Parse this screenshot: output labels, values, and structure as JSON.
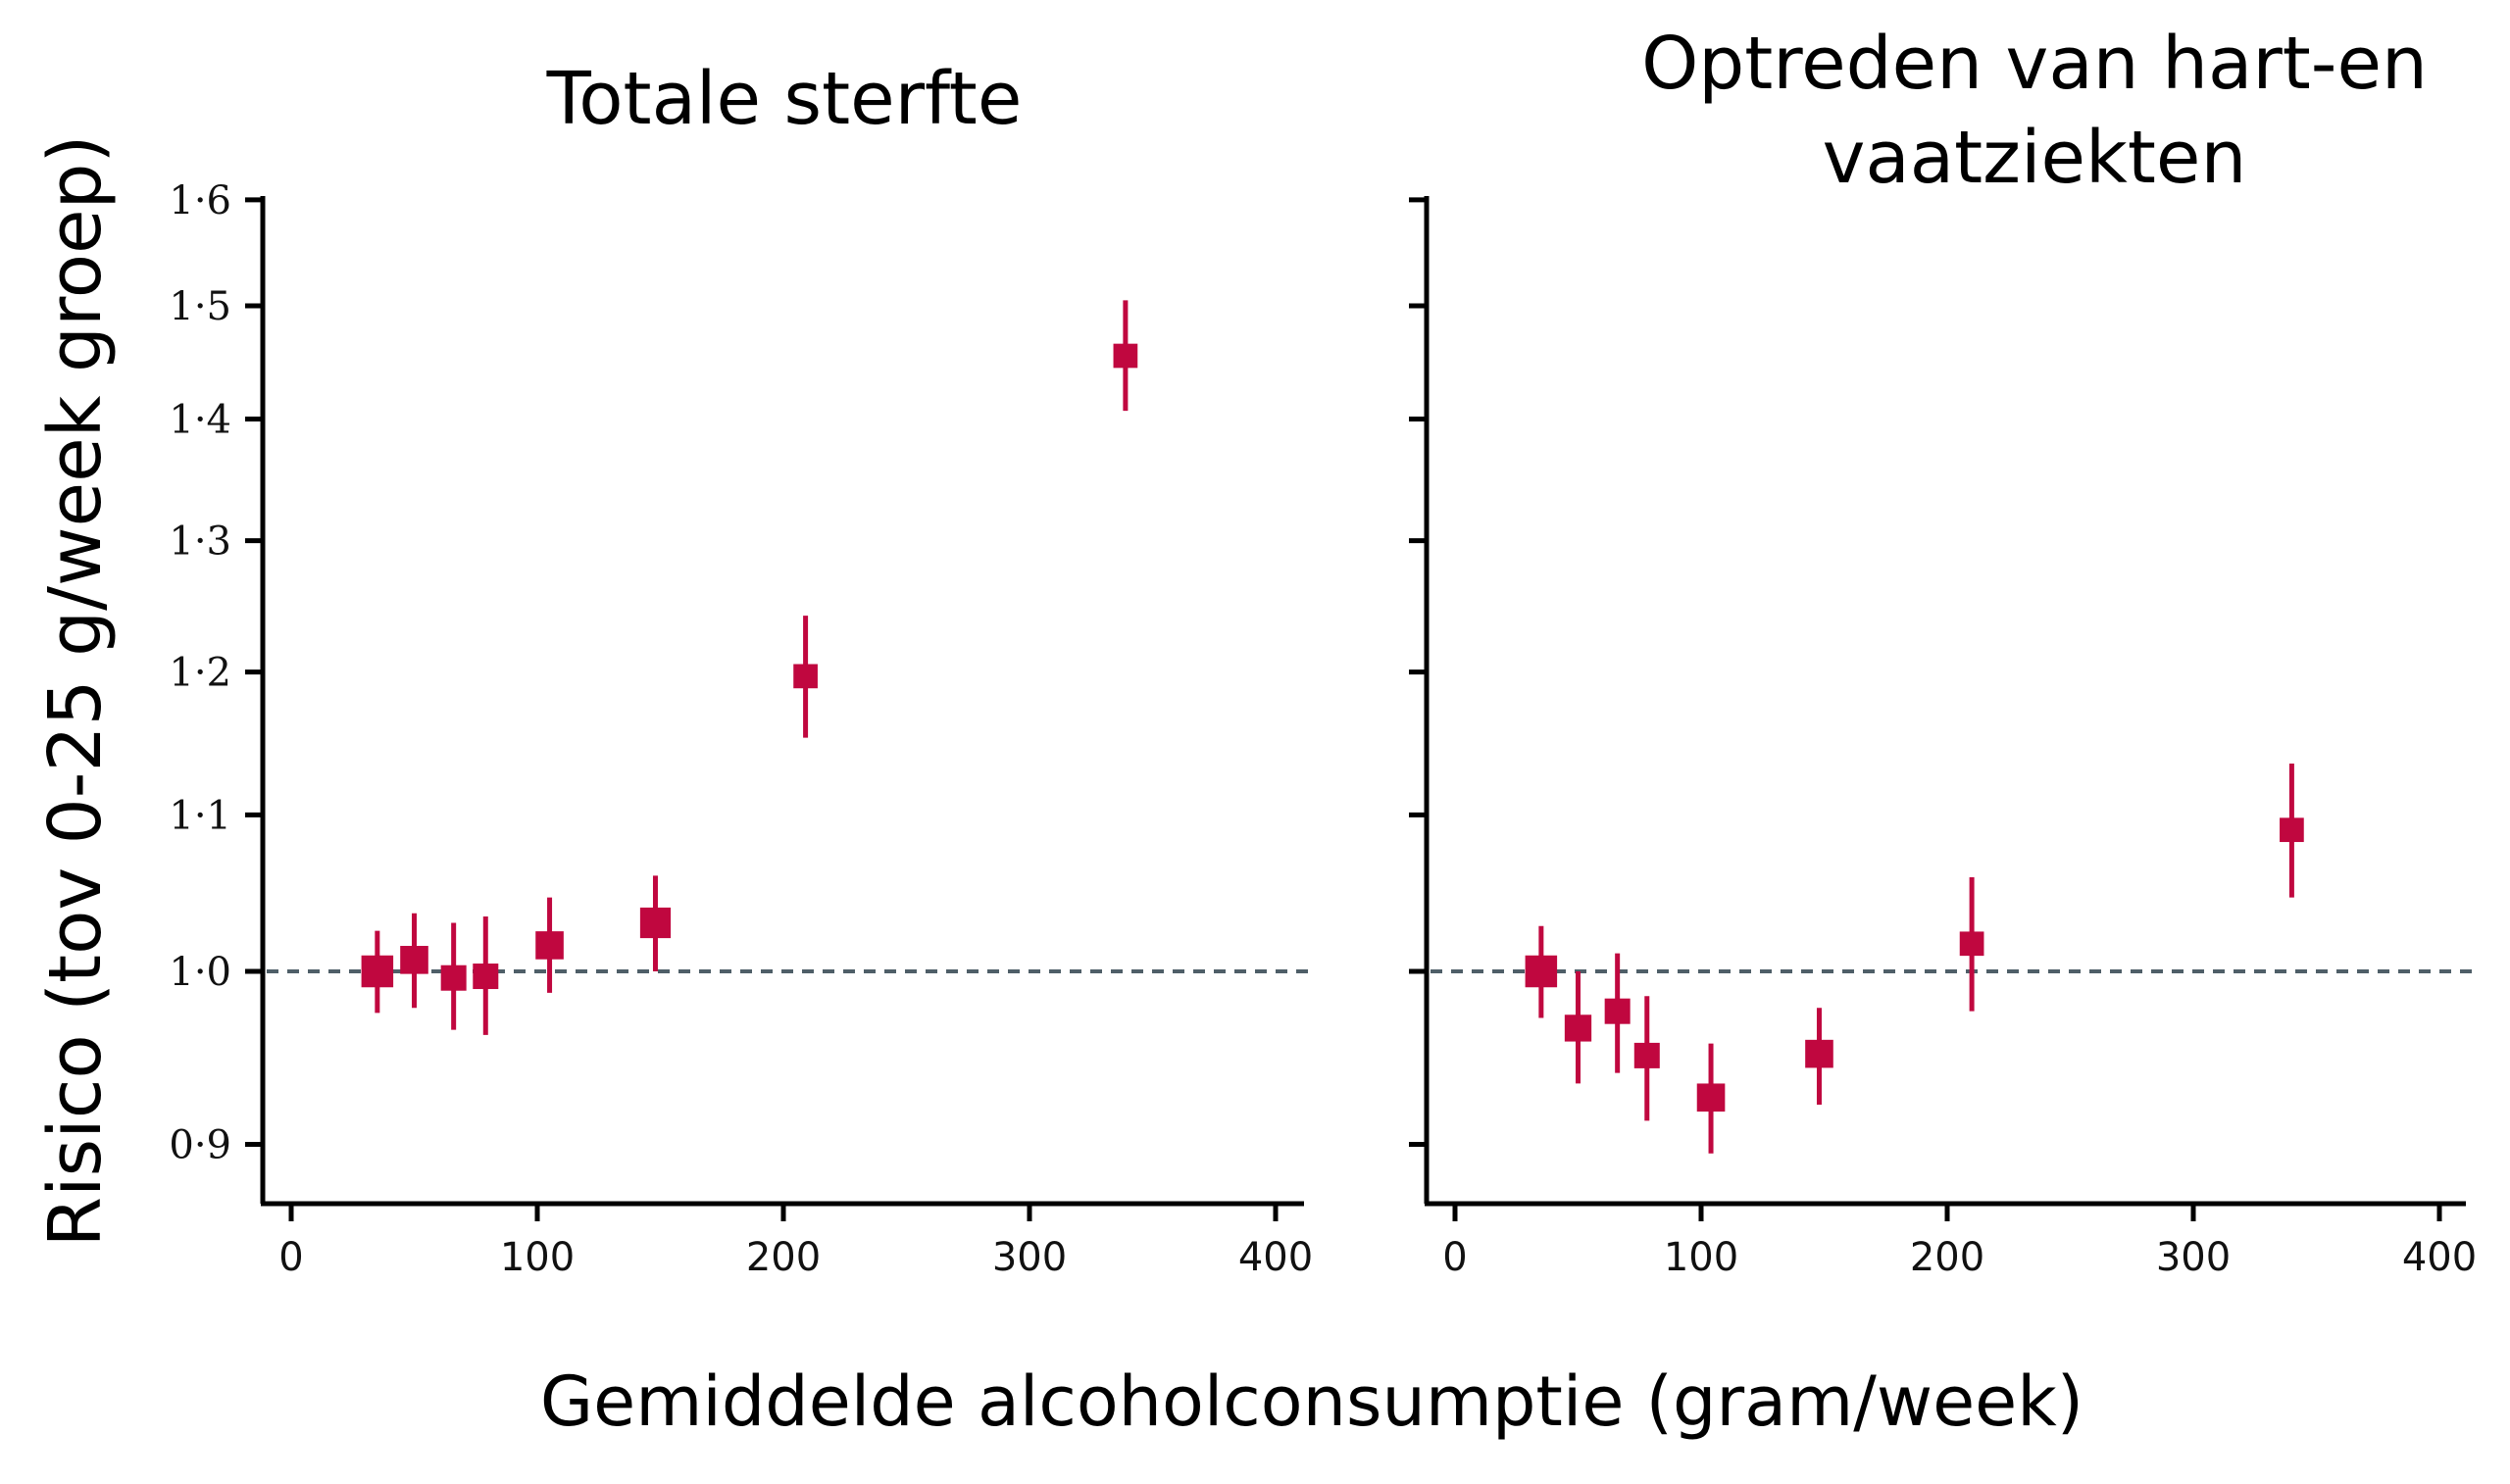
{
  "figure": {
    "y_axis_label": "Risico (tov 0-25 g/week groep)",
    "x_axis_label": "Gemiddelde alcoholconsumptie (gram/week)",
    "marker_color": "#c0073f",
    "reference_line_color": "#4f5f68"
  },
  "chart_data": [
    {
      "type": "scatter",
      "title": "Totale sterfte",
      "xlabel": "Gemiddelde alcoholconsumptie (gram/week)",
      "ylabel": "Risico (tov 0-25 g/week groep)",
      "xlim": [
        -10,
        410
      ],
      "ylim": [
        0.88,
        1.6
      ],
      "y_scale": "log",
      "x_ticks": [
        0,
        100,
        200,
        300,
        400
      ],
      "x_tick_labels": [
        "0",
        "100",
        "200",
        "300",
        "400"
      ],
      "y_ticks": [
        0.9,
        1.0,
        1.1,
        1.2,
        1.3,
        1.4,
        1.5,
        1.6
      ],
      "y_tick_labels": [
        "0·9",
        "1·0",
        "1·1",
        "1·2",
        "1·3",
        "1·4",
        "1·5",
        "1·6"
      ],
      "reference_line": 1.0,
      "points": [
        {
          "x": 35,
          "y": 1.0,
          "lo": 0.975,
          "hi": 1.025,
          "size": 1.25
        },
        {
          "x": 50,
          "y": 1.007,
          "lo": 0.978,
          "hi": 1.036,
          "size": 1.1
        },
        {
          "x": 66,
          "y": 0.996,
          "lo": 0.965,
          "hi": 1.03,
          "size": 1.0
        },
        {
          "x": 79,
          "y": 0.997,
          "lo": 0.962,
          "hi": 1.034,
          "size": 1.0
        },
        {
          "x": 105,
          "y": 1.016,
          "lo": 0.987,
          "hi": 1.046,
          "size": 1.1
        },
        {
          "x": 148,
          "y": 1.03,
          "lo": 1.0,
          "hi": 1.06,
          "size": 1.2
        },
        {
          "x": 209,
          "y": 1.197,
          "lo": 1.153,
          "hi": 1.242,
          "size": 0.95
        },
        {
          "x": 339,
          "y": 1.455,
          "lo": 1.407,
          "hi": 1.505,
          "size": 0.95
        }
      ]
    },
    {
      "type": "scatter",
      "title": "Optreden van hart-en vaatziekten",
      "title_lines": [
        "Optreden van hart-en",
        "vaatziekten"
      ],
      "xlabel": "Gemiddelde alcoholconsumptie (gram/week)",
      "ylabel": "Risico (tov 0-25 g/week groep)",
      "xlim": [
        -10,
        410
      ],
      "ylim": [
        0.88,
        1.6
      ],
      "y_scale": "log",
      "x_ticks": [
        0,
        100,
        200,
        300,
        400
      ],
      "x_tick_labels": [
        "0",
        "100",
        "200",
        "300",
        "400"
      ],
      "y_ticks": [
        0.9,
        1.0,
        1.1,
        1.2,
        1.3,
        1.4,
        1.5,
        1.6
      ],
      "y_tick_labels": [],
      "reference_line": 1.0,
      "points": [
        {
          "x": 35,
          "y": 1.0,
          "lo": 0.972,
          "hi": 1.028,
          "size": 1.25
        },
        {
          "x": 50,
          "y": 0.966,
          "lo": 0.934,
          "hi": 1.0,
          "size": 1.05
        },
        {
          "x": 66,
          "y": 0.976,
          "lo": 0.94,
          "hi": 1.011,
          "size": 1.0
        },
        {
          "x": 78,
          "y": 0.95,
          "lo": 0.913,
          "hi": 0.985,
          "size": 1.0
        },
        {
          "x": 104,
          "y": 0.926,
          "lo": 0.895,
          "hi": 0.957,
          "size": 1.1
        },
        {
          "x": 148,
          "y": 0.951,
          "lo": 0.922,
          "hi": 0.978,
          "size": 1.1
        },
        {
          "x": 210,
          "y": 1.017,
          "lo": 0.976,
          "hi": 1.059,
          "size": 0.95
        },
        {
          "x": 340,
          "y": 1.09,
          "lo": 1.046,
          "hi": 1.135,
          "size": 0.95
        }
      ]
    }
  ]
}
